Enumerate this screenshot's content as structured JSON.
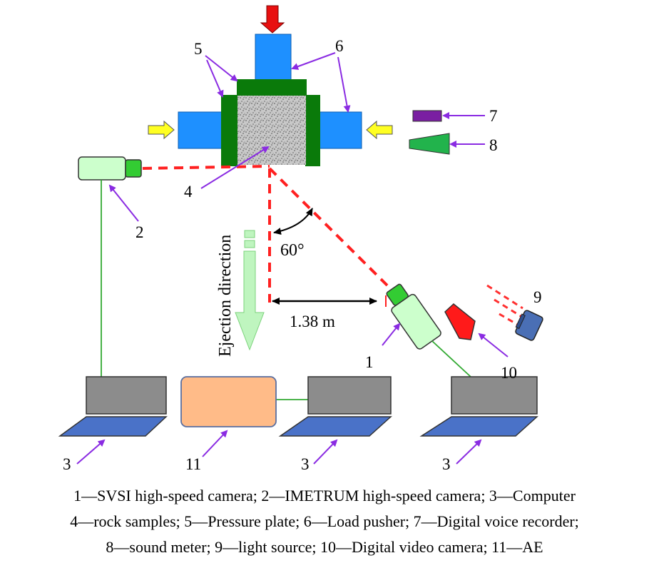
{
  "labels": {
    "n1": "1",
    "n2": "2",
    "n3a": "3",
    "n3b": "3",
    "n3c": "3",
    "n4": "4",
    "n5": "5",
    "n6": "6",
    "n7": "7",
    "n8": "8",
    "n9": "9",
    "n10": "10",
    "n11": "11"
  },
  "annotations": {
    "angle": "60°",
    "distance": "1.38 m",
    "ejection": "Ejection direction"
  },
  "legend": [
    "1—SVSI high-speed camera; 2—IMETRUM high-speed camera; 3—Computer",
    "4—rock samples; 5—Pressure plate; 6—Load pusher; 7—Digital voice recorder;",
    "8—sound meter; 9—light source; 10—Digital video camera; 11—AE"
  ],
  "colors": {
    "pusher": "#1e90ff",
    "plate": "#0a7a0a",
    "laser": "#ff2020",
    "pointer": "#8a2be2",
    "camera": "#ccffcc",
    "lens": "#33cc33",
    "monitor": "#8c8c8c",
    "keyboard": "#4a72c8",
    "ae": "#ffbb88",
    "recorder": "#7a1fa2",
    "meter": "#22b34c",
    "ejection": "#bff5bf",
    "video_camera": "#ff1a1a",
    "light_source": "#4a6fb5"
  }
}
